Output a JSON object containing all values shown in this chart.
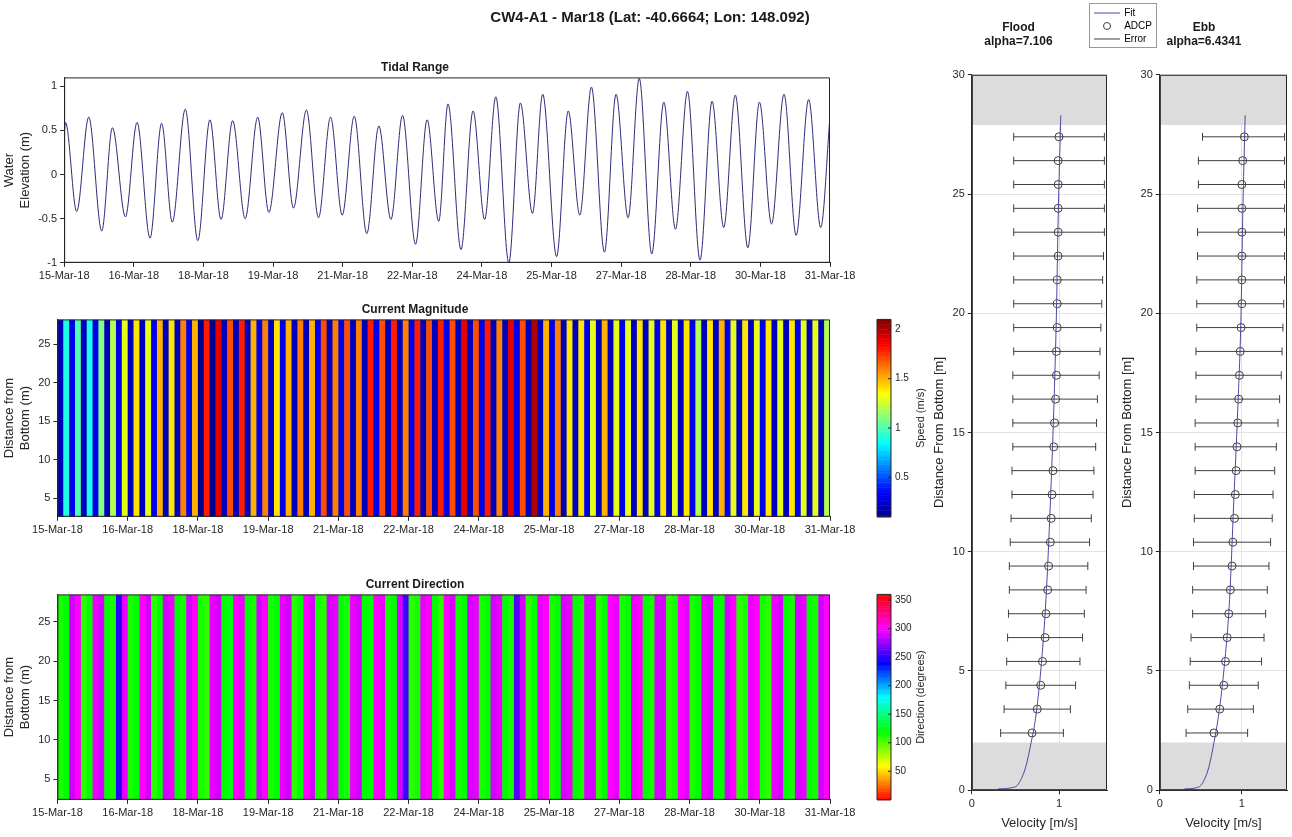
{
  "chart_data": [
    {
      "type": "line",
      "title": "Tidal Range",
      "ylabel": "Water Elevation (m)",
      "annotations": [
        "CW4-A1 - Mar18 (Lat: -40.6664; Lon: 148.092)"
      ],
      "color": "#2c2c7a",
      "x": [
        "--03-15T00:00",
        "--03-15T00:43",
        "--03-15T06:29",
        "--03-15T12:43",
        "--03-15T19:26",
        "--03-16T00:58",
        "--03-16T07:41",
        "--03-16T13:41",
        "--03-16T20:24",
        "--03-17T02:24",
        "--03-17T07:55",
        "--03-17T14:38",
        "--03-17T21:07",
        "--03-18T03:22",
        "--03-18T09:07",
        "--03-18T15:07",
        "--03-18T21:36",
        "--03-19T04:05",
        "--03-19T09:50",
        "--03-19T16:48",
        "--03-19T22:34",
        "--03-20T05:17",
        "--03-20T11:31",
        "--03-20T17:46",
        "--03-20T23:46",
        "--03-21T06:00",
        "--03-21T12:29",
        "--03-21T18:43",
        "--03-22T00:58",
        "--03-22T06:58",
        "--03-22T13:41",
        "--03-22T19:41",
        "--03-23T01:41",
        "--03-23T06:29",
        "--03-23T13:12",
        "--03-23T19:26",
        "--03-24T01:26",
        "--03-24T07:12",
        "--03-24T13:55",
        "--03-24T19:55",
        "--03-25T02:10",
        "--03-25T07:26",
        "--03-25T14:38",
        "--03-25T20:38",
        "--03-26T02:38",
        "--03-26T08:38",
        "--03-26T15:22",
        "--03-26T21:22",
        "--03-27T03:36",
        "--03-27T09:22",
        "--03-27T15:50",
        "--03-27T22:05",
        "--03-28T04:05",
        "--03-28T10:19",
        "--03-28T16:48",
        "--03-28T23:02",
        "--03-29T05:02",
        "--03-29T11:02",
        "--03-29T17:31",
        "--03-29T23:31",
        "--03-30T05:46",
        "--03-30T12:14",
        "--03-30T18:29",
        "--03-31T00:58",
        "--03-31T07:12",
        "--03-31T12:00"
      ],
      "values": [
        0.45,
        0.59,
        -0.42,
        0.65,
        -0.64,
        0.53,
        -0.48,
        0.59,
        -0.72,
        0.58,
        -0.54,
        0.74,
        -0.75,
        0.62,
        -0.51,
        0.61,
        -0.5,
        0.65,
        -0.43,
        0.7,
        -0.38,
        0.73,
        -0.49,
        0.65,
        -0.46,
        0.66,
        -0.67,
        0.55,
        -0.51,
        0.67,
        -0.79,
        0.62,
        -0.53,
        0.8,
        -0.85,
        0.72,
        -0.51,
        0.88,
        -1.0,
        0.81,
        -0.44,
        0.91,
        -0.93,
        0.72,
        -0.46,
        0.99,
        -0.88,
        0.91,
        -0.49,
        1.09,
        -0.9,
        0.82,
        -0.62,
        0.94,
        -0.97,
        0.83,
        -0.6,
        0.9,
        -0.83,
        0.82,
        -0.56,
        0.91,
        -0.69,
        0.85,
        -0.6,
        0.66
      ],
      "xlim": [
        "--03-15",
        "--03-31T12:00"
      ],
      "xticks": [
        {
          "value": "--03-15",
          "label": "15-Mar-18"
        },
        {
          "value": "--03-16T12:00",
          "label": "16-Mar-18"
        },
        {
          "value": "--03-18",
          "label": "18-Mar-18"
        },
        {
          "value": "--03-19T12:00",
          "label": "19-Mar-18"
        },
        {
          "value": "--03-21",
          "label": "21-Mar-18"
        },
        {
          "value": "--03-22T12:00",
          "label": "22-Mar-18"
        },
        {
          "value": "--03-24",
          "label": "24-Mar-18"
        },
        {
          "value": "--03-25T12:00",
          "label": "25-Mar-18"
        },
        {
          "value": "--03-27",
          "label": "27-Mar-18"
        },
        {
          "value": "--03-28T12:00",
          "label": "28-Mar-18"
        },
        {
          "value": "--03-30",
          "label": "30-Mar-18"
        },
        {
          "value": "--03-31T12:00",
          "label": "31-Mar-18"
        }
      ],
      "ylim": [
        -1,
        1.1
      ],
      "yticks": [
        -1,
        -0.5,
        0,
        0.5,
        1
      ]
    },
    {
      "type": "heatmap",
      "title": "Current Magnitude",
      "ylabel": "Distance from Bottom (m)",
      "clabel": "Speed (m/s)",
      "colors": [
        "#00008f",
        "#0000ff",
        "#0080ff",
        "#00ffff",
        "#80ff80",
        "#ffff00",
        "#ff8000",
        "#ff0000",
        "#800000"
      ],
      "x": [
        "--03-15T01:30",
        "--03-15T04:30",
        "--03-15T07:30",
        "--03-15T10:30",
        "--03-15T13:30",
        "--03-15T16:30",
        "--03-15T19:30",
        "--03-15T22:30",
        "--03-16T01:30",
        "--03-16T04:30",
        "--03-16T07:30",
        "--03-16T10:30",
        "--03-16T13:30",
        "--03-16T16:30",
        "--03-16T19:30",
        "--03-16T22:30",
        "--03-17T01:30",
        "--03-17T04:30",
        "--03-17T07:30",
        "--03-17T10:30",
        "--03-17T13:30",
        "--03-17T16:30",
        "--03-17T19:30",
        "--03-17T22:30",
        "--03-18T01:30",
        "--03-18T04:30",
        "--03-18T07:30",
        "--03-18T10:30",
        "--03-18T13:30",
        "--03-18T16:30",
        "--03-18T19:30",
        "--03-18T22:30",
        "--03-19T01:30",
        "--03-19T04:30",
        "--03-19T07:30",
        "--03-19T10:30",
        "--03-19T13:30",
        "--03-19T16:30",
        "--03-19T19:30",
        "--03-19T22:30",
        "--03-20T01:30",
        "--03-20T04:30",
        "--03-20T07:30",
        "--03-20T10:30",
        "--03-20T13:30",
        "--03-20T16:30",
        "--03-20T19:30",
        "--03-20T22:30",
        "--03-21T01:30",
        "--03-21T04:30",
        "--03-21T07:30",
        "--03-21T10:30",
        "--03-21T13:30",
        "--03-21T16:30",
        "--03-21T19:30",
        "--03-21T22:30",
        "--03-22T01:30",
        "--03-22T04:30",
        "--03-22T07:30",
        "--03-22T10:30",
        "--03-22T13:30",
        "--03-22T16:30",
        "--03-22T19:30",
        "--03-22T22:30",
        "--03-23T01:30",
        "--03-23T04:30",
        "--03-23T07:30",
        "--03-23T10:30",
        "--03-23T13:30",
        "--03-23T16:30",
        "--03-23T19:30",
        "--03-23T22:30",
        "--03-24T01:30",
        "--03-24T04:30",
        "--03-24T07:30",
        "--03-24T10:30",
        "--03-24T13:30",
        "--03-24T16:30",
        "--03-24T19:30",
        "--03-24T22:30",
        "--03-25T01:30",
        "--03-25T04:30",
        "--03-25T07:30",
        "--03-25T10:30",
        "--03-25T13:30",
        "--03-25T16:30",
        "--03-25T19:30",
        "--03-25T22:30",
        "--03-26T01:30",
        "--03-26T04:30",
        "--03-26T07:30",
        "--03-26T10:30",
        "--03-26T13:30",
        "--03-26T16:30",
        "--03-26T19:30",
        "--03-26T22:30",
        "--03-27T01:30",
        "--03-27T04:30",
        "--03-27T07:30",
        "--03-27T10:30",
        "--03-27T13:30",
        "--03-27T16:30",
        "--03-27T19:30",
        "--03-27T22:30",
        "--03-28T01:30",
        "--03-28T04:30",
        "--03-28T07:30",
        "--03-28T10:30",
        "--03-28T13:30",
        "--03-28T16:30",
        "--03-28T19:30",
        "--03-28T22:30",
        "--03-29T01:30",
        "--03-29T04:30",
        "--03-29T07:30",
        "--03-29T10:30",
        "--03-29T13:30",
        "--03-29T16:30",
        "--03-29T19:30",
        "--03-29T22:30",
        "--03-30T01:30",
        "--03-30T04:30",
        "--03-30T07:30",
        "--03-30T10:30",
        "--03-30T13:30",
        "--03-30T16:30",
        "--03-30T19:30",
        "--03-30T22:30",
        "--03-31T01:30",
        "--03-31T04:30",
        "--03-31T07:30",
        "--03-31T10:30"
      ],
      "cells": [
        [
          0.2,
          0.9,
          0.3,
          1.0,
          0.2,
          0.9,
          0.3,
          1.1,
          0.2,
          1.2,
          0.3,
          1.3,
          0.2,
          1.4,
          0.2,
          1.3,
          0.3,
          1.5,
          0.2,
          1.4,
          0.2,
          1.6,
          0.3,
          1.5,
          0.1,
          1.8,
          0.1,
          1.9,
          0.2,
          1.7,
          0.2,
          1.8,
          0.2,
          1.5,
          0.3,
          1.6,
          0.2,
          1.4,
          0.3,
          1.5,
          0.2,
          1.6,
          0.2,
          1.5,
          0.3,
          1.7,
          0.2,
          1.6,
          0.3,
          1.7,
          0.2,
          1.6,
          0.2,
          1.8,
          0.3,
          1.7,
          0.2,
          1.8,
          0.2,
          1.6,
          0.3,
          1.8,
          0.2,
          1.7,
          0.2,
          1.8,
          0.3,
          1.7,
          0.2,
          1.9,
          0.2,
          1.7,
          0.3,
          1.8,
          0.2,
          1.6,
          0.2,
          1.9,
          0.3,
          1.7,
          0.2,
          2.0,
          0.2,
          1.5,
          0.3,
          1.6,
          0.2,
          1.4,
          0.2,
          1.4,
          0.3,
          1.3,
          0.2,
          1.5,
          0.2,
          1.3,
          0.3,
          1.3,
          0.2,
          1.4,
          0.2,
          1.3,
          0.3,
          1.4,
          0.2,
          1.3,
          0.2,
          1.4,
          0.3,
          1.2,
          0.2,
          1.4,
          0.2,
          1.5,
          0.3,
          1.3,
          0.2,
          1.4,
          0.2,
          1.3,
          0.3,
          1.4,
          0.2,
          1.3,
          0.2,
          1.4,
          0.3,
          1.3,
          0.2,
          1.3,
          0.2,
          1.2
        ]
      ],
      "xlim": [
        "--03-15",
        "--03-31T12:00"
      ],
      "xticks": [
        {
          "value": "--03-15",
          "label": "15-Mar-18"
        },
        {
          "value": "--03-16T12:00",
          "label": "16-Mar-18"
        },
        {
          "value": "--03-18",
          "label": "18-Mar-18"
        },
        {
          "value": "--03-19T12:00",
          "label": "19-Mar-18"
        },
        {
          "value": "--03-21",
          "label": "21-Mar-18"
        },
        {
          "value": "--03-22T12:00",
          "label": "22-Mar-18"
        },
        {
          "value": "--03-24",
          "label": "24-Mar-18"
        },
        {
          "value": "--03-25T12:00",
          "label": "25-Mar-18"
        },
        {
          "value": "--03-27",
          "label": "27-Mar-18"
        },
        {
          "value": "--03-28T12:00",
          "label": "28-Mar-18"
        },
        {
          "value": "--03-30",
          "label": "30-Mar-18"
        },
        {
          "value": "--03-31T12:00",
          "label": "31-Mar-18"
        }
      ],
      "ylim": [
        2.6,
        28.2
      ],
      "yticks": [
        5,
        10,
        15,
        20,
        25
      ],
      "clim": [
        0.1,
        2.1
      ],
      "cticks": [
        0.5,
        1,
        1.5,
        2
      ]
    },
    {
      "type": "heatmap",
      "title": "Current Direction",
      "ylabel": "Distance from Bottom (m)",
      "clabel": "Direction (degrees)",
      "colors": [
        "#ff0000",
        "#ffff00",
        "#00ff00",
        "#00ffff",
        "#0000ff",
        "#ff00ff",
        "#ff0000"
      ],
      "x": [
        "--03-15T01:30",
        "--03-15T04:30",
        "--03-15T07:30",
        "--03-15T10:30",
        "--03-15T13:30",
        "--03-15T16:30",
        "--03-15T19:30",
        "--03-15T22:30",
        "--03-16T01:30",
        "--03-16T04:30",
        "--03-16T07:30",
        "--03-16T10:30",
        "--03-16T13:30",
        "--03-16T16:30",
        "--03-16T19:30",
        "--03-16T22:30",
        "--03-17T01:30",
        "--03-17T04:30",
        "--03-17T07:30",
        "--03-17T10:30",
        "--03-17T13:30",
        "--03-17T16:30",
        "--03-17T19:30",
        "--03-17T22:30",
        "--03-18T01:30",
        "--03-18T04:30",
        "--03-18T07:30",
        "--03-18T10:30",
        "--03-18T13:30",
        "--03-18T16:30",
        "--03-18T19:30",
        "--03-18T22:30",
        "--03-19T01:30",
        "--03-19T04:30",
        "--03-19T07:30",
        "--03-19T10:30",
        "--03-19T13:30",
        "--03-19T16:30",
        "--03-19T19:30",
        "--03-19T22:30",
        "--03-20T01:30",
        "--03-20T04:30",
        "--03-20T07:30",
        "--03-20T10:30",
        "--03-20T13:30",
        "--03-20T16:30",
        "--03-20T19:30",
        "--03-20T22:30",
        "--03-21T01:30",
        "--03-21T04:30",
        "--03-21T07:30",
        "--03-21T10:30",
        "--03-21T13:30",
        "--03-21T16:30",
        "--03-21T19:30",
        "--03-21T22:30",
        "--03-22T01:30",
        "--03-22T04:30",
        "--03-22T07:30",
        "--03-22T10:30",
        "--03-22T13:30",
        "--03-22T16:30",
        "--03-22T19:30",
        "--03-22T22:30",
        "--03-23T01:30",
        "--03-23T04:30",
        "--03-23T07:30",
        "--03-23T10:30",
        "--03-23T13:30",
        "--03-23T16:30",
        "--03-23T19:30",
        "--03-23T22:30",
        "--03-24T01:30",
        "--03-24T04:30",
        "--03-24T07:30",
        "--03-24T10:30",
        "--03-24T13:30",
        "--03-24T16:30",
        "--03-24T19:30",
        "--03-24T22:30",
        "--03-25T01:30",
        "--03-25T04:30",
        "--03-25T07:30",
        "--03-25T10:30",
        "--03-25T13:30",
        "--03-25T16:30",
        "--03-25T19:30",
        "--03-25T22:30",
        "--03-26T01:30",
        "--03-26T04:30",
        "--03-26T07:30",
        "--03-26T10:30",
        "--03-26T13:30",
        "--03-26T16:30",
        "--03-26T19:30",
        "--03-26T22:30",
        "--03-27T01:30",
        "--03-27T04:30",
        "--03-27T07:30",
        "--03-27T10:30",
        "--03-27T13:30",
        "--03-27T16:30",
        "--03-27T19:30",
        "--03-27T22:30",
        "--03-28T01:30",
        "--03-28T04:30",
        "--03-28T07:30",
        "--03-28T10:30",
        "--03-28T13:30",
        "--03-28T16:30",
        "--03-28T19:30",
        "--03-28T22:30",
        "--03-29T01:30",
        "--03-29T04:30",
        "--03-29T07:30",
        "--03-29T10:30",
        "--03-29T13:30",
        "--03-29T16:30",
        "--03-29T19:30",
        "--03-29T22:30",
        "--03-30T01:30",
        "--03-30T04:30",
        "--03-30T07:30",
        "--03-30T10:30",
        "--03-30T13:30",
        "--03-30T16:30",
        "--03-30T19:30",
        "--03-30T22:30",
        "--03-31T01:30",
        "--03-31T04:30",
        "--03-31T07:30",
        "--03-31T10:30"
      ],
      "cells": [
        [
          115,
          120,
          290,
          300,
          110,
          120,
          295,
          290,
          120,
          115,
          250,
          295,
          115,
          120,
          300,
          290,
          110,
          120,
          290,
          295,
          120,
          115,
          290,
          300,
          115,
          110,
          295,
          290,
          120,
          125,
          300,
          295,
          120,
          115,
          290,
          300,
          115,
          120,
          295,
          290,
          110,
          120,
          300,
          290,
          115,
          110,
          290,
          295,
          120,
          115,
          295,
          290,
          120,
          120,
          300,
          295,
          115,
          120,
          290,
          255,
          110,
          115,
          295,
          300,
          120,
          110,
          300,
          290,
          115,
          120,
          290,
          295,
          115,
          120,
          290,
          295,
          120,
          115,
          260,
          290,
          110,
          120,
          295,
          300,
          115,
          120,
          290,
          295,
          120,
          115,
          290,
          290,
          110,
          120,
          300,
          295,
          115,
          120,
          295,
          300,
          120,
          115,
          290,
          290,
          110,
          115,
          300,
          295,
          115,
          120,
          295,
          290,
          120,
          120,
          290,
          300,
          110,
          115,
          295,
          300,
          115,
          110,
          295,
          290,
          120,
          115,
          290,
          295,
          120,
          115,
          290,
          300
        ]
      ],
      "xlim": [
        "--03-15",
        "--03-31T12:00"
      ],
      "xticks": [
        {
          "value": "--03-15",
          "label": "15-Mar-18"
        },
        {
          "value": "--03-16T12:00",
          "label": "16-Mar-18"
        },
        {
          "value": "--03-18",
          "label": "18-Mar-18"
        },
        {
          "value": "--03-19T12:00",
          "label": "19-Mar-18"
        },
        {
          "value": "--03-21",
          "label": "21-Mar-18"
        },
        {
          "value": "--03-22T12:00",
          "label": "22-Mar-18"
        },
        {
          "value": "--03-24",
          "label": "24-Mar-18"
        },
        {
          "value": "--03-25T12:00",
          "label": "25-Mar-18"
        },
        {
          "value": "--03-27",
          "label": "27-Mar-18"
        },
        {
          "value": "--03-28T12:00",
          "label": "28-Mar-18"
        },
        {
          "value": "--03-30",
          "label": "30-Mar-18"
        },
        {
          "value": "--03-31T12:00",
          "label": "31-Mar-18"
        }
      ],
      "ylim": [
        2.4,
        28.5
      ],
      "yticks": [
        5,
        10,
        15,
        20,
        25
      ],
      "clim": [
        0,
        360
      ],
      "cticks": [
        50,
        100,
        150,
        200,
        250,
        300,
        350
      ]
    },
    {
      "type": "scatter",
      "title": "Flood",
      "subtitle": "alpha=7.106",
      "xlabel": "Velocity [m/s]",
      "ylabel": "Distance From Bottom [m]",
      "xlim": [
        0,
        1.55
      ],
      "xticks": [
        {
          "value": 0,
          "label": "0"
        },
        1
      ],
      "ylim": [
        0,
        30
      ],
      "yticks": [
        {
          "value": 0,
          "label": "0"
        },
        5,
        10,
        15,
        20,
        25,
        30
      ],
      "grid": true,
      "legend": "top right",
      "bands": [
        {
          "axis": "y",
          "from": 0,
          "to": 2,
          "color": "#dcdcdc"
        },
        {
          "axis": "y",
          "from": 27.9,
          "to": 30,
          "color": "#dcdcdc"
        }
      ],
      "series": [
        {
          "name": "Fit",
          "type": "line",
          "color": "#4a4aa0",
          "x": [
            0.3,
            0.45,
            0.52,
            0.57,
            0.62,
            0.68,
            0.73,
            0.79,
            0.85,
            0.9,
            0.94,
            0.97,
            0.99,
            1.02
          ],
          "values": [
            0.05,
            0.1,
            0.2,
            0.5,
            1,
            2,
            3,
            5,
            8,
            12,
            16,
            20,
            24,
            28.3
          ]
        },
        {
          "name": "ADCP",
          "type": "scatter",
          "marker": "circle",
          "color": "#404040",
          "x": [
            0.69,
            0.75,
            0.79,
            0.81,
            0.84,
            0.85,
            0.87,
            0.88,
            0.9,
            0.91,
            0.92,
            0.93,
            0.94,
            0.95,
            0.96,
            0.97,
            0.97,
            0.98,
            0.98,
            0.98,
            0.99,
            0.99,
            0.99,
            0.99,
            0.99,
            1.0
          ],
          "values": [
            2.4,
            3.4,
            4.4,
            5.4,
            6.4,
            7.4,
            8.4,
            9.4,
            10.4,
            11.4,
            12.4,
            13.4,
            14.4,
            15.4,
            16.4,
            17.4,
            18.4,
            19.4,
            20.4,
            21.4,
            22.4,
            23.4,
            24.4,
            25.4,
            26.4,
            27.4
          ],
          "xerrors": [
            [
              0.33,
              1.05
            ],
            [
              0.37,
              1.13
            ],
            [
              0.39,
              1.19
            ],
            [
              0.4,
              1.24
            ],
            [
              0.41,
              1.27
            ],
            [
              0.42,
              1.29
            ],
            [
              0.43,
              1.31
            ],
            [
              0.43,
              1.33
            ],
            [
              0.44,
              1.35
            ],
            [
              0.45,
              1.37
            ],
            [
              0.46,
              1.39
            ],
            [
              0.46,
              1.4
            ],
            [
              0.47,
              1.42
            ],
            [
              0.47,
              1.43
            ],
            [
              0.47,
              1.44
            ],
            [
              0.47,
              1.46
            ],
            [
              0.48,
              1.47
            ],
            [
              0.48,
              1.48
            ],
            [
              0.48,
              1.49
            ],
            [
              0.48,
              1.5
            ],
            [
              0.48,
              1.51
            ],
            [
              0.48,
              1.52
            ],
            [
              0.48,
              1.52
            ],
            [
              0.48,
              1.52
            ],
            [
              0.48,
              1.52
            ],
            [
              0.48,
              1.52
            ]
          ]
        },
        {
          "name": "Error",
          "type": "line",
          "color": "#404040"
        }
      ]
    },
    {
      "type": "scatter",
      "title": "Ebb",
      "subtitle": "alpha=6.4341",
      "xlabel": "Velocity [m/s]",
      "ylabel": "Distance From Bottom [m]",
      "xlim": [
        0,
        1.55
      ],
      "xticks": [
        {
          "value": 0,
          "label": "0"
        },
        1
      ],
      "ylim": [
        0,
        30
      ],
      "yticks": [
        {
          "value": 0,
          "label": "0"
        },
        5,
        10,
        15,
        20,
        25,
        30
      ],
      "grid": true,
      "bands": [
        {
          "axis": "y",
          "from": 0,
          "to": 2,
          "color": "#dcdcdc"
        },
        {
          "axis": "y",
          "from": 27.9,
          "to": 30,
          "color": "#dcdcdc"
        }
      ],
      "series": [
        {
          "type": "line",
          "color": "#4a4aa0",
          "x": [
            0.3,
            0.44,
            0.5,
            0.55,
            0.6,
            0.66,
            0.71,
            0.78,
            0.85,
            0.9,
            0.95,
            0.99,
            1.01,
            1.04
          ],
          "values": [
            0.05,
            0.1,
            0.2,
            0.5,
            1,
            2,
            3,
            5,
            8,
            12,
            16,
            20,
            24,
            28.3
          ]
        },
        {
          "type": "scatter",
          "marker": "circle",
          "color": "#404040",
          "x": [
            0.66,
            0.73,
            0.78,
            0.8,
            0.82,
            0.84,
            0.86,
            0.88,
            0.89,
            0.91,
            0.92,
            0.93,
            0.94,
            0.95,
            0.96,
            0.97,
            0.98,
            0.99,
            1.0,
            1.0,
            1.0,
            1.0,
            1.0,
            1.0,
            1.01,
            1.03
          ],
          "values": [
            2.4,
            3.4,
            4.4,
            5.4,
            6.4,
            7.4,
            8.4,
            9.4,
            10.4,
            11.4,
            12.4,
            13.4,
            14.4,
            15.4,
            16.4,
            17.4,
            18.4,
            19.4,
            20.4,
            21.4,
            22.4,
            23.4,
            24.4,
            25.4,
            26.4,
            27.4
          ],
          "xerrors": [
            [
              0.32,
              1.07
            ],
            [
              0.34,
              1.14
            ],
            [
              0.36,
              1.2
            ],
            [
              0.37,
              1.24
            ],
            [
              0.38,
              1.27
            ],
            [
              0.4,
              1.29
            ],
            [
              0.4,
              1.31
            ],
            [
              0.41,
              1.33
            ],
            [
              0.41,
              1.35
            ],
            [
              0.42,
              1.37
            ],
            [
              0.42,
              1.38
            ],
            [
              0.43,
              1.4
            ],
            [
              0.43,
              1.42
            ],
            [
              0.43,
              1.44
            ],
            [
              0.44,
              1.46
            ],
            [
              0.44,
              1.48
            ],
            [
              0.44,
              1.49
            ],
            [
              0.45,
              1.5
            ],
            [
              0.45,
              1.51
            ],
            [
              0.45,
              1.52
            ],
            [
              0.46,
              1.52
            ],
            [
              0.46,
              1.52
            ],
            [
              0.46,
              1.52
            ],
            [
              0.47,
              1.52
            ],
            [
              0.47,
              1.52
            ],
            [
              0.52,
              1.52
            ]
          ]
        },
        {
          "type": "line",
          "color": "#404040"
        }
      ]
    }
  ]
}
